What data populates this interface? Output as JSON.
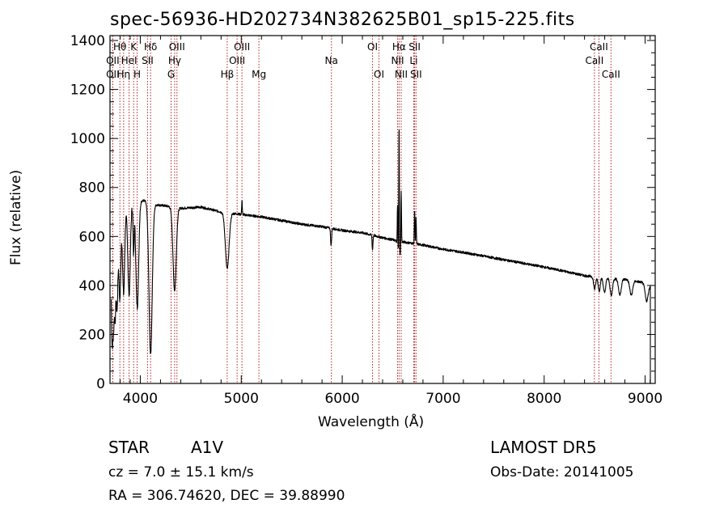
{
  "chart_data": {
    "type": "line",
    "title": "spec-56936-HD202734N382625B01_sp15-225.fits",
    "xlabel": "Wavelength (Å)",
    "ylabel": "Flux (relative)",
    "xlim": [
      3700,
      9100
    ],
    "ylim": [
      0,
      1420
    ],
    "x_ticks": [
      4000,
      5000,
      6000,
      7000,
      8000,
      9000
    ],
    "y_ticks": [
      0,
      200,
      400,
      600,
      800,
      1000,
      1200,
      1400
    ],
    "grid": false,
    "line_color": "#000000",
    "marker_color": "#b22222",
    "continuum": [
      {
        "x": 3710,
        "y": 430
      },
      {
        "x": 3760,
        "y": 560
      },
      {
        "x": 3800,
        "y": 650
      },
      {
        "x": 3850,
        "y": 700
      },
      {
        "x": 3900,
        "y": 730
      },
      {
        "x": 3950,
        "y": 740
      },
      {
        "x": 4000,
        "y": 748
      },
      {
        "x": 4050,
        "y": 745
      },
      {
        "x": 4150,
        "y": 730
      },
      {
        "x": 4250,
        "y": 725
      },
      {
        "x": 4400,
        "y": 715
      },
      {
        "x": 4600,
        "y": 720
      },
      {
        "x": 4800,
        "y": 700
      },
      {
        "x": 5000,
        "y": 690
      },
      {
        "x": 5200,
        "y": 680
      },
      {
        "x": 5400,
        "y": 665
      },
      {
        "x": 5600,
        "y": 650
      },
      {
        "x": 5800,
        "y": 640
      },
      {
        "x": 6000,
        "y": 625
      },
      {
        "x": 6200,
        "y": 615
      },
      {
        "x": 6400,
        "y": 595
      },
      {
        "x": 6600,
        "y": 578
      },
      {
        "x": 6800,
        "y": 565
      },
      {
        "x": 7000,
        "y": 548
      },
      {
        "x": 7200,
        "y": 535
      },
      {
        "x": 7400,
        "y": 520
      },
      {
        "x": 7600,
        "y": 505
      },
      {
        "x": 7800,
        "y": 490
      },
      {
        "x": 8000,
        "y": 475
      },
      {
        "x": 8200,
        "y": 458
      },
      {
        "x": 8400,
        "y": 440
      },
      {
        "x": 8600,
        "y": 430
      },
      {
        "x": 8800,
        "y": 425
      },
      {
        "x": 9000,
        "y": 410
      },
      {
        "x": 9050,
        "y": 400
      }
    ],
    "features": [
      {
        "x": 3721,
        "w": 6,
        "d": 280
      },
      {
        "x": 3734,
        "w": 6,
        "d": 260
      },
      {
        "x": 3750,
        "w": 7,
        "d": 270
      },
      {
        "x": 3770,
        "w": 8,
        "d": 280
      },
      {
        "x": 3798,
        "w": 9,
        "d": 300
      },
      {
        "x": 3835,
        "w": 10,
        "d": 320
      },
      {
        "x": 3889,
        "w": 12,
        "d": 360
      },
      {
        "x": 3933,
        "w": 5,
        "d": 200
      },
      {
        "x": 3970,
        "w": 14,
        "d": 430
      },
      {
        "x": 4102,
        "w": 16,
        "d": 620
      },
      {
        "x": 4340,
        "w": 16,
        "d": 340
      },
      {
        "x": 4861,
        "w": 18,
        "d": 230
      },
      {
        "x": 5890,
        "w": 5,
        "d": 70
      },
      {
        "x": 6300,
        "w": 4,
        "d": 60
      },
      {
        "x": 6563,
        "w": 12,
        "d": 80
      },
      {
        "x": 8500,
        "w": 10,
        "d": 50
      },
      {
        "x": 8545,
        "w": 10,
        "d": 55
      },
      {
        "x": 8598,
        "w": 11,
        "d": 60
      },
      {
        "x": 8665,
        "w": 12,
        "d": 70
      },
      {
        "x": 8750,
        "w": 13,
        "d": 65
      },
      {
        "x": 8863,
        "w": 14,
        "d": 60
      },
      {
        "x": 9015,
        "w": 15,
        "d": 70
      }
    ],
    "emission": [
      {
        "x": 6563,
        "w": 3,
        "h": 560
      },
      {
        "x": 6548,
        "w": 3,
        "h": 180
      },
      {
        "x": 6584,
        "w": 3,
        "h": 220
      },
      {
        "x": 6717,
        "w": 3,
        "h": 140
      },
      {
        "x": 6731,
        "w": 3,
        "h": 110
      },
      {
        "x": 5007,
        "w": 3,
        "h": 60
      }
    ],
    "lines": [
      {
        "name": "Hθ",
        "x": 3798,
        "row": 0
      },
      {
        "name": "OII",
        "x": 3727,
        "row": 1
      },
      {
        "name": "OII",
        "x": 3727,
        "row": 2
      },
      {
        "name": "K",
        "x": 3934,
        "row": 0
      },
      {
        "name": "HeI",
        "x": 3889,
        "row": 1
      },
      {
        "name": "Hη",
        "x": 3835,
        "row": 2
      },
      {
        "name": "H",
        "x": 3969,
        "row": 2
      },
      {
        "name": "Hδ",
        "x": 4102,
        "row": 0
      },
      {
        "name": "SII",
        "x": 4072,
        "row": 1
      },
      {
        "name": "OIII",
        "x": 4363,
        "row": 0
      },
      {
        "name": "Hγ",
        "x": 4340,
        "row": 1
      },
      {
        "name": "G",
        "x": 4305,
        "row": 2
      },
      {
        "name": "OIII",
        "x": 5007,
        "row": 0
      },
      {
        "name": "OIII",
        "x": 4959,
        "row": 1
      },
      {
        "name": "Hβ",
        "x": 4861,
        "row": 2
      },
      {
        "name": "Mg",
        "x": 5175,
        "row": 2
      },
      {
        "name": "Na",
        "x": 5893,
        "row": 1
      },
      {
        "name": "OI",
        "x": 6300,
        "row": 0
      },
      {
        "name": "OI",
        "x": 6364,
        "row": 2
      },
      {
        "name": "Hα",
        "x": 6563,
        "row": 0
      },
      {
        "name": "NII",
        "x": 6548,
        "row": 1
      },
      {
        "name": "NII",
        "x": 6584,
        "row": 2
      },
      {
        "name": "SII",
        "x": 6717,
        "row": 0
      },
      {
        "name": "Li",
        "x": 6708,
        "row": 1
      },
      {
        "name": "SII",
        "x": 6731,
        "row": 2
      },
      {
        "name": "CaII",
        "x": 8542,
        "row": 0
      },
      {
        "name": "CaII",
        "x": 8498,
        "row": 1
      },
      {
        "name": "CaII",
        "x": 8662,
        "row": 2
      }
    ]
  },
  "info": {
    "class": "STAR",
    "subclass": "A1V",
    "survey": "LAMOST DR5",
    "cz": "cz = 7.0 ± 15.1 km/s",
    "obs_date": "Obs-Date: 20141005",
    "coords": "RA = 306.74620, DEC =  39.88990"
  }
}
